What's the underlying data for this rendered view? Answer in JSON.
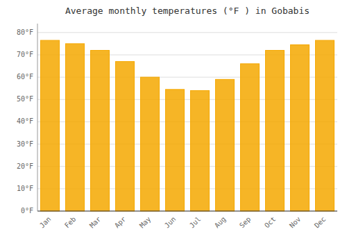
{
  "chart_data": {
    "type": "bar",
    "title": "Average monthly temperatures (°F ) in Gobabis",
    "categories": [
      "Jan",
      "Feb",
      "Mar",
      "Apr",
      "May",
      "Jun",
      "Jul",
      "Aug",
      "Sep",
      "Oct",
      "Nov",
      "Dec"
    ],
    "values": [
      76.5,
      75.0,
      72.0,
      67.0,
      60.0,
      54.5,
      54.0,
      59.0,
      66.0,
      72.0,
      74.5,
      76.5
    ],
    "color": "#F5A800",
    "ylim": [
      0,
      84
    ],
    "yticks": [
      {
        "value": 0,
        "label": "0°F"
      },
      {
        "value": 10,
        "label": "10°F"
      },
      {
        "value": 20,
        "label": "20°F"
      },
      {
        "value": 30,
        "label": "30°F"
      },
      {
        "value": 40,
        "label": "40°F"
      },
      {
        "value": 50,
        "label": "50°F"
      },
      {
        "value": 60,
        "label": "60°F"
      },
      {
        "value": 70,
        "label": "70°F"
      },
      {
        "value": 80,
        "label": "80°F"
      }
    ],
    "grid": true
  }
}
